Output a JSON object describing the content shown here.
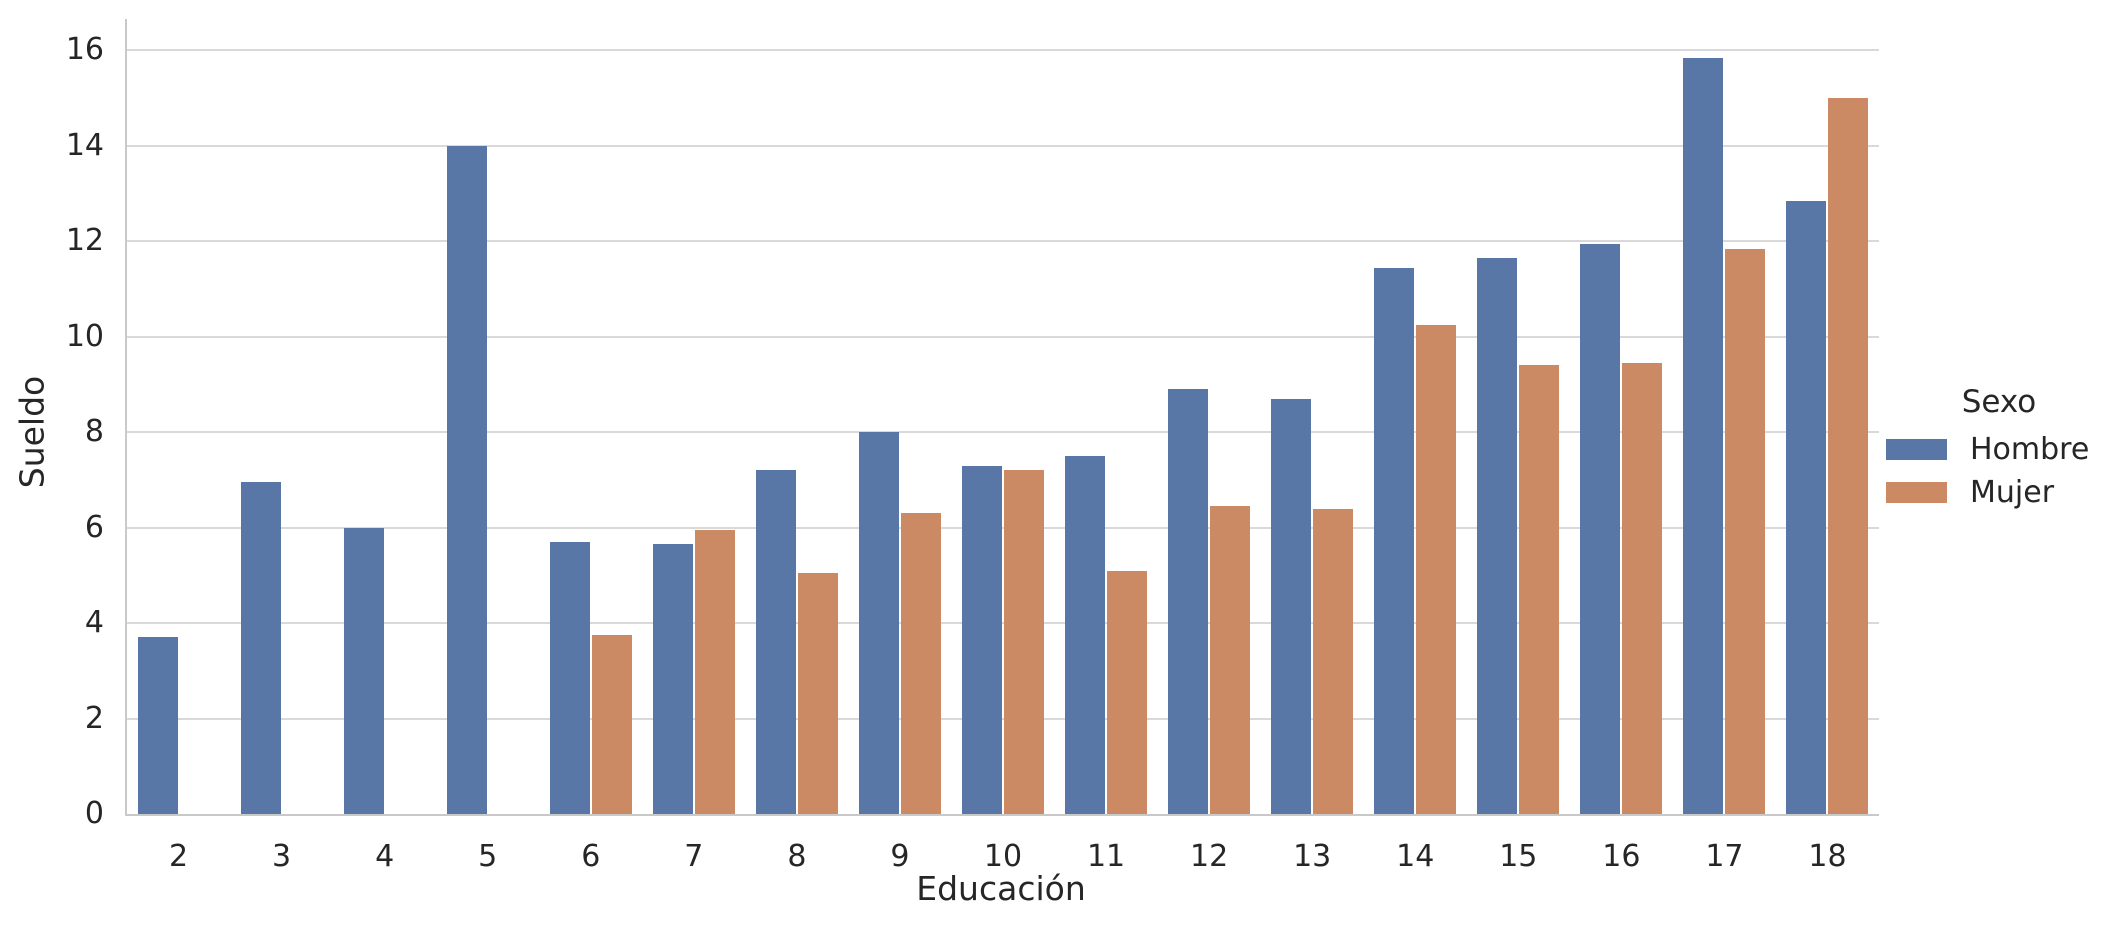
{
  "chart_data": {
    "type": "bar",
    "title": "",
    "xlabel": "Educación",
    "ylabel": "Sueldo",
    "legend_title": "Sexo",
    "legend_position": "center right",
    "grid": true,
    "categories": [
      2,
      3,
      4,
      5,
      6,
      7,
      8,
      9,
      10,
      11,
      12,
      13,
      14,
      15,
      16,
      17,
      18
    ],
    "series": [
      {
        "name": "Hombre",
        "color": "#5876A6",
        "values": [
          3.7,
          6.95,
          6.0,
          14.0,
          5.7,
          5.65,
          7.2,
          8.0,
          7.3,
          7.5,
          8.9,
          8.7,
          11.45,
          11.65,
          11.95,
          15.85,
          12.85
        ]
      },
      {
        "name": "Mujer",
        "color": "#CB8A63",
        "values": [
          null,
          null,
          null,
          null,
          3.75,
          5.95,
          5.05,
          6.3,
          7.2,
          5.1,
          6.45,
          6.4,
          10.25,
          9.4,
          9.45,
          11.85,
          15.0
        ]
      }
    ],
    "yticks": [
      0,
      2,
      4,
      6,
      8,
      10,
      12,
      14,
      16
    ],
    "ylim": [
      0,
      16.66
    ]
  },
  "style": {
    "background": "#FFFFFF",
    "grid_color": "#D9D9D9",
    "spine_color": "#C9C9C9",
    "text_color": "#262626"
  }
}
